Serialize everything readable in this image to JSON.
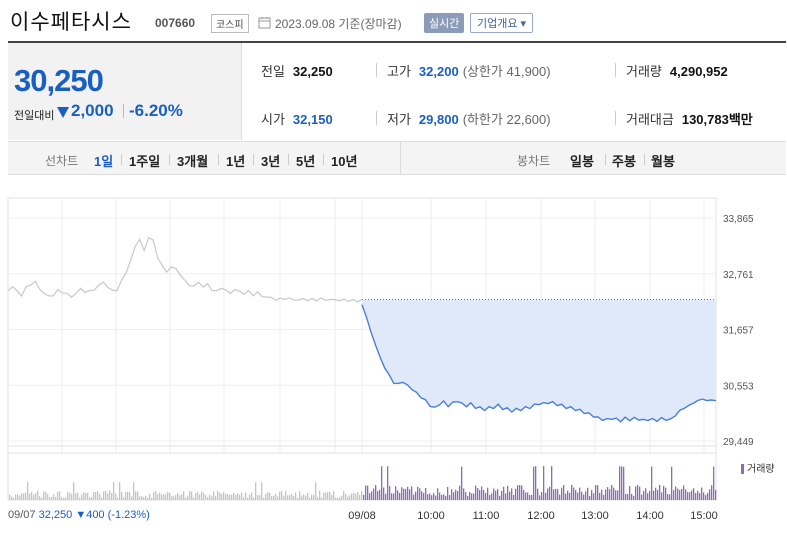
{
  "header": {
    "company_name": "이수페타시스",
    "stock_code": "007660",
    "market": "코스피",
    "date_note": "2023.09.08 기준(장마감)",
    "live_button": "실시간",
    "overview_button": "기업개요 ▾"
  },
  "price": {
    "current": "30,250",
    "change_label": "전일대비",
    "change": "2,000",
    "change_pct": "-6.20%"
  },
  "stats": {
    "prev_label": "전일",
    "prev_value": "32,250",
    "high_label": "고가",
    "high_value": "32,200",
    "upper_limit": "(상한가 41,900)",
    "volume_label": "거래량",
    "volume_value": "4,290,952",
    "open_label": "시가",
    "open_value": "32,150",
    "low_label": "저가",
    "low_value": "29,800",
    "lower_limit": "(하한가 22,600)",
    "amount_label": "거래대금",
    "amount_value": "130,783",
    "amount_unit": "백만"
  },
  "tabs": {
    "line_label": "선차트",
    "line_tabs": [
      "1일",
      "1주일",
      "3개월",
      "1년",
      "3년",
      "5년",
      "10년"
    ],
    "active_line_tab": "1일",
    "candle_label": "봉차트",
    "candle_tabs": [
      "일봉",
      "주봉",
      "월봉"
    ]
  },
  "footer": {
    "prev_date": "09/07",
    "prev_price": "32,250",
    "prev_change": "▼400",
    "prev_pct": "(-1.23%)"
  },
  "colors": {
    "accent_blue": "#1a5ec2",
    "line_blue": "#4a7fd6",
    "fill_blue": "#dfe9f9",
    "prev_gray": "#c8c8c8",
    "volume_purple": "#8d6cb0",
    "volume_gray": "#c4c4c4"
  },
  "chart_data": {
    "type": "line",
    "y_ticks": [
      "33,865",
      "32,761",
      "31,657",
      "30,553",
      "29,449"
    ],
    "ylim": [
      29449,
      33865
    ],
    "reference_price": 32250,
    "x_ticks": [
      "09/08",
      "10:00",
      "11:00",
      "12:00",
      "13:00",
      "14:00",
      "15:00"
    ],
    "volume_legend": "거래량",
    "series": [
      {
        "x": [
          0,
          5,
          10,
          15,
          20,
          25,
          30,
          35,
          40,
          45,
          50,
          55,
          60,
          65,
          70,
          75,
          80,
          85,
          90,
          95,
          100,
          105,
          110,
          115,
          120,
          125,
          130,
          135,
          140,
          145,
          150,
          155,
          160,
          165,
          170,
          175,
          180,
          185,
          190,
          195,
          200,
          205,
          210,
          215,
          220,
          225,
          230,
          235,
          240,
          245,
          250,
          255,
          260,
          265,
          270,
          275,
          280,
          285,
          290,
          295,
          300,
          305,
          310,
          315,
          320,
          325,
          330,
          335,
          340,
          345,
          350,
          355,
          360,
          365,
          370,
          375,
          380,
          385,
          390
        ],
        "values": [
          32420,
          32520,
          32400,
          32350,
          32480,
          32560,
          32600,
          32450,
          32380,
          32300,
          32350,
          32420,
          32400,
          32360,
          32300,
          32380,
          32450,
          32420,
          32400,
          32460,
          32520,
          32600,
          32500,
          32420,
          32450,
          32600,
          32800,
          33000,
          33300,
          33450,
          33200,
          33500,
          33400,
          33100,
          32900,
          32800,
          32900,
          32850,
          32750,
          32600,
          32550,
          32500,
          32600,
          32500,
          32550,
          32450,
          32400,
          32500,
          32420,
          32380,
          32450,
          32400,
          32380,
          32400,
          32350,
          32380,
          32320,
          32300,
          32280,
          32260,
          32250,
          32280,
          32260,
          32250,
          32240,
          32260,
          32250,
          32240,
          32250,
          32260,
          32250,
          32250,
          32240,
          32250,
          32230,
          32240,
          32230,
          32220,
          32250
        ]
      },
      {
        "x": [
          0,
          5,
          10,
          15,
          20,
          25,
          30,
          35,
          40,
          45,
          50,
          55,
          60,
          65,
          70,
          75,
          80,
          85,
          90,
          95,
          100,
          105,
          110,
          115,
          120,
          125,
          130,
          135,
          140,
          145,
          150,
          155,
          160,
          165,
          170,
          175,
          180,
          185,
          190,
          195,
          200,
          205,
          210,
          215,
          220,
          225,
          230,
          235,
          240,
          245,
          250,
          255,
          260,
          265,
          270,
          275,
          280,
          285,
          290,
          295,
          300,
          305,
          310,
          315,
          320,
          325,
          330,
          335,
          340,
          345,
          350,
          355,
          360,
          365,
          370,
          375,
          380,
          385,
          390
        ],
        "values": [
          32150,
          31900,
          31600,
          31350,
          31100,
          30900,
          30750,
          30600,
          30580,
          30620,
          30550,
          30480,
          30400,
          30320,
          30250,
          30150,
          30100,
          30180,
          30220,
          30150,
          30200,
          30250,
          30180,
          30150,
          30180,
          30120,
          30100,
          30080,
          30100,
          30120,
          30150,
          30100,
          30080,
          30050,
          30070,
          30080,
          30100,
          30120,
          30150,
          30200,
          30180,
          30220,
          30200,
          30180,
          30150,
          30120,
          30100,
          30080,
          30050,
          30020,
          29980,
          29950,
          29900,
          29880,
          29870,
          29900,
          29880,
          29850,
          29900,
          29870,
          29900,
          29880,
          29860,
          29870,
          29880,
          29850,
          29900,
          29870,
          29880,
          29950,
          30050,
          30100,
          30150,
          30200,
          30250,
          30280,
          30250,
          30260,
          30250
        ]
      }
    ]
  }
}
